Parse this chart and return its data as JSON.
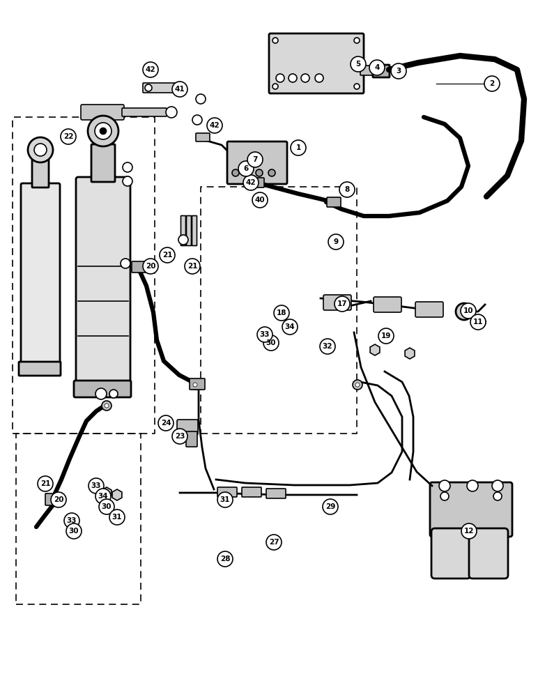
{
  "background_color": "#ffffff",
  "line_color": "#000000",
  "fig_width": 7.72,
  "fig_height": 10.0
}
